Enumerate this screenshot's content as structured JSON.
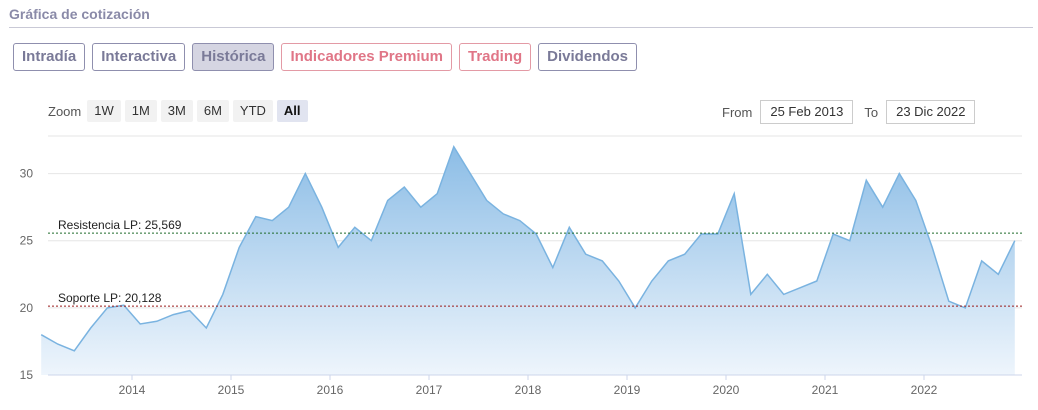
{
  "header": {
    "title": "Gráfica de cotización"
  },
  "tabs": [
    {
      "label": "Intradía",
      "active": false,
      "premium": false
    },
    {
      "label": "Interactiva",
      "active": false,
      "premium": false
    },
    {
      "label": "Histórica",
      "active": true,
      "premium": false
    },
    {
      "label": "Indicadores Premium",
      "active": false,
      "premium": true
    },
    {
      "label": "Trading",
      "active": false,
      "premium": true
    },
    {
      "label": "Dividendos",
      "active": false,
      "premium": false
    }
  ],
  "zoom": {
    "label": "Zoom",
    "buttons": [
      "1W",
      "1M",
      "3M",
      "6M",
      "YTD",
      "All"
    ],
    "selected": "All"
  },
  "range": {
    "from_label": "From",
    "from_value": "25 Feb 2013",
    "to_label": "To",
    "to_value": "23 Dic 2022"
  },
  "colors": {
    "line": "#7ab3e0",
    "fill_top": "#8cbde6",
    "fill_bottom": "#eef5fc",
    "resistance": "#1f6b2a",
    "support": "#9b1b1b"
  },
  "chart_data": {
    "type": "area",
    "x": [
      "2013-02",
      "2013-04",
      "2013-06",
      "2013-08",
      "2013-10",
      "2013-12",
      "2014-02",
      "2014-04",
      "2014-06",
      "2014-08",
      "2014-10",
      "2014-12",
      "2015-02",
      "2015-04",
      "2015-06",
      "2015-08",
      "2015-10",
      "2015-12",
      "2016-02",
      "2016-04",
      "2016-06",
      "2016-08",
      "2016-10",
      "2016-12",
      "2017-02",
      "2017-04",
      "2017-06",
      "2017-08",
      "2017-10",
      "2017-12",
      "2018-02",
      "2018-04",
      "2018-06",
      "2018-08",
      "2018-10",
      "2018-12",
      "2019-02",
      "2019-04",
      "2019-06",
      "2019-08",
      "2019-10",
      "2019-12",
      "2020-02",
      "2020-04",
      "2020-06",
      "2020-08",
      "2020-10",
      "2020-12",
      "2021-02",
      "2021-04",
      "2021-06",
      "2021-08",
      "2021-10",
      "2021-12",
      "2022-02",
      "2022-04",
      "2022-06",
      "2022-08",
      "2022-10",
      "2022-12"
    ],
    "values": [
      18.0,
      17.3,
      16.8,
      18.5,
      20.0,
      20.2,
      18.8,
      19.0,
      19.5,
      19.8,
      18.5,
      21.0,
      24.5,
      26.8,
      26.5,
      27.5,
      30.0,
      27.5,
      24.5,
      26.0,
      25.0,
      28.0,
      29.0,
      27.5,
      28.5,
      32.0,
      30.0,
      28.0,
      27.0,
      26.5,
      25.5,
      23.0,
      26.0,
      24.0,
      23.5,
      22.0,
      20.0,
      22.0,
      23.5,
      24.0,
      25.5,
      25.5,
      28.5,
      21.0,
      22.5,
      21.0,
      21.5,
      22.0,
      25.5,
      25.0,
      29.5,
      27.5,
      30.0,
      28.0,
      24.5,
      20.5,
      20.0,
      23.5,
      22.5,
      25.0
    ],
    "yticks": [
      15,
      20,
      25,
      30
    ],
    "xticks": [
      "2014",
      "2015",
      "2016",
      "2017",
      "2018",
      "2019",
      "2020",
      "2021",
      "2022"
    ],
    "ylim": [
      15,
      32.8
    ],
    "lines": [
      {
        "label": "Resistencia LP: 25,569",
        "value": 25.569
      },
      {
        "label": "Soporte LP: 20,128",
        "value": 20.128
      }
    ]
  }
}
